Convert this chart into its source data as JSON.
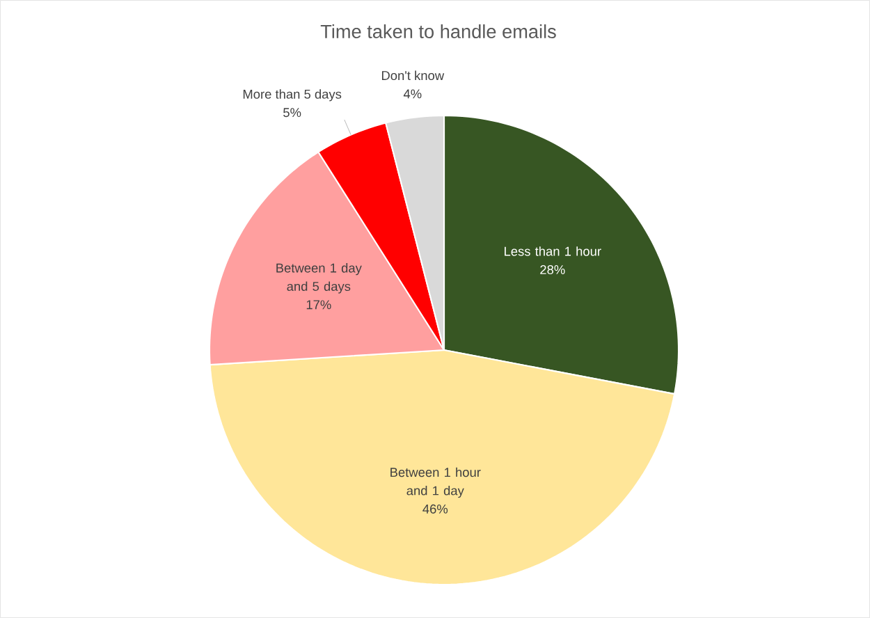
{
  "chart_data": {
    "type": "pie",
    "title": "Time taken to handle emails",
    "categories": [
      "Less than 1 hour",
      "Between 1 hour and 1 day",
      "Between 1 day and 5 days",
      "More than 5 days",
      "Don't know"
    ],
    "values": [
      28,
      46,
      17,
      5,
      4
    ],
    "value_labels": [
      "28%",
      "46%",
      "17%",
      "5%",
      "4%"
    ],
    "colors": [
      "#375623",
      "#ffe699",
      "#ff9f9f",
      "#ff0000",
      "#d9d9d9"
    ],
    "legend": false
  }
}
